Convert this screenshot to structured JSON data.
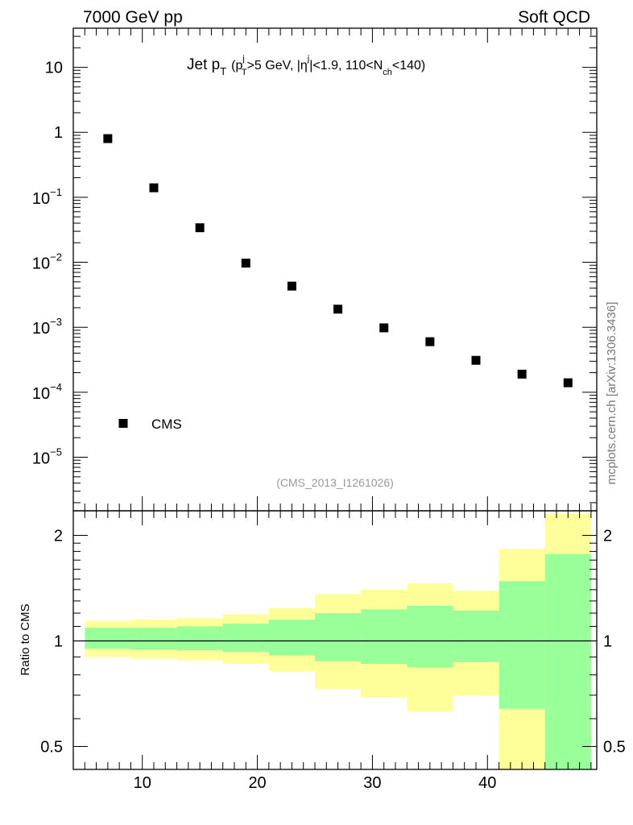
{
  "header": {
    "left_label": "7000 GeV pp",
    "right_label": "Soft QCD",
    "side_label": "mcplots.cern.ch [arXiv:1306.3436]",
    "analysis_tag": "(CMS_2013_I1261026)"
  },
  "colors": {
    "marker": "#000000",
    "band_outer": "#ffff99",
    "band_inner": "#99ff99",
    "tag_text": "#999999",
    "side_text": "#777777"
  },
  "chart_data": [
    {
      "type": "scatter",
      "title": "Jet p_T (p_T^j>5 GeV, |η^j|<1.9, 110<N_ch<140)",
      "title_parts": {
        "main": "Jet p",
        "main_sub": "T",
        "open": "(p",
        "pt_sup": "j",
        "pt_sub": "T",
        "cut1": ">5 GeV, |η",
        "eta_sup": "j",
        "cut2": "|<1.9, 110<N",
        "nch_sub": "ch",
        "cut3": "<140)"
      },
      "xscale": "linear",
      "yscale": "log",
      "xlim": [
        4.0,
        49.5
      ],
      "ylim": [
        1.5e-06,
        40
      ],
      "y_ticks": [
        {
          "value": 10,
          "label": "10",
          "exp": ""
        },
        {
          "value": 1,
          "label": "1",
          "exp": ""
        },
        {
          "value": 0.1,
          "label": "10",
          "exp": "−1"
        },
        {
          "value": 0.01,
          "label": "10",
          "exp": "−2"
        },
        {
          "value": 0.001,
          "label": "10",
          "exp": "−3"
        },
        {
          "value": 0.0001,
          "label": "10",
          "exp": "−4"
        },
        {
          "value": 1e-05,
          "label": "10",
          "exp": "−5"
        }
      ],
      "legend": {
        "entries": [
          {
            "name": "CMS",
            "marker": "square"
          }
        ],
        "placement": "bottom-left"
      },
      "series": [
        {
          "name": "CMS",
          "x": [
            7,
            11,
            15,
            19,
            23,
            27,
            31,
            35,
            39,
            43,
            47
          ],
          "y": [
            0.8,
            0.14,
            0.034,
            0.0097,
            0.0043,
            0.0019,
            0.00098,
            0.0006,
            0.00031,
            0.00019,
            0.00014
          ]
        }
      ]
    },
    {
      "type": "area",
      "ylabel": "Ratio to CMS",
      "xlabel": "",
      "xscale": "linear",
      "yscale": "log",
      "xlim": [
        4.0,
        49.5
      ],
      "ylim": [
        0.43,
        2.35
      ],
      "x_ticks": [
        10,
        20,
        30,
        40
      ],
      "y_ticks": [
        {
          "value": 2,
          "label": "2"
        },
        {
          "value": 1,
          "label": "1"
        },
        {
          "value": 0.5,
          "label": "0.5"
        }
      ],
      "reference_line": 1,
      "bins": [
        {
          "lo": 5,
          "hi": 9,
          "outer": [
            0.9,
            1.14
          ],
          "inner": [
            0.95,
            1.09
          ]
        },
        {
          "lo": 9,
          "hi": 13,
          "outer": [
            0.89,
            1.15
          ],
          "inner": [
            0.945,
            1.09
          ]
        },
        {
          "lo": 13,
          "hi": 17,
          "outer": [
            0.88,
            1.16
          ],
          "inner": [
            0.94,
            1.1
          ]
        },
        {
          "lo": 17,
          "hi": 21,
          "outer": [
            0.86,
            1.19
          ],
          "inner": [
            0.93,
            1.12
          ]
        },
        {
          "lo": 21,
          "hi": 25,
          "outer": [
            0.82,
            1.24
          ],
          "inner": [
            0.91,
            1.15
          ]
        },
        {
          "lo": 25,
          "hi": 29,
          "outer": [
            0.73,
            1.36
          ],
          "inner": [
            0.875,
            1.2
          ]
        },
        {
          "lo": 29,
          "hi": 33,
          "outer": [
            0.69,
            1.4
          ],
          "inner": [
            0.86,
            1.23
          ]
        },
        {
          "lo": 33,
          "hi": 37,
          "outer": [
            0.63,
            1.46
          ],
          "inner": [
            0.84,
            1.26
          ]
        },
        {
          "lo": 37,
          "hi": 41,
          "outer": [
            0.7,
            1.39
          ],
          "inner": [
            0.87,
            1.22
          ]
        },
        {
          "lo": 41,
          "hi": 45,
          "outer": [
            0.43,
            1.83
          ],
          "inner": [
            0.64,
            1.48
          ]
        },
        {
          "lo": 45,
          "hi": 49,
          "outer": [
            0.43,
            2.3
          ],
          "inner": [
            0.43,
            1.77
          ]
        }
      ]
    }
  ]
}
